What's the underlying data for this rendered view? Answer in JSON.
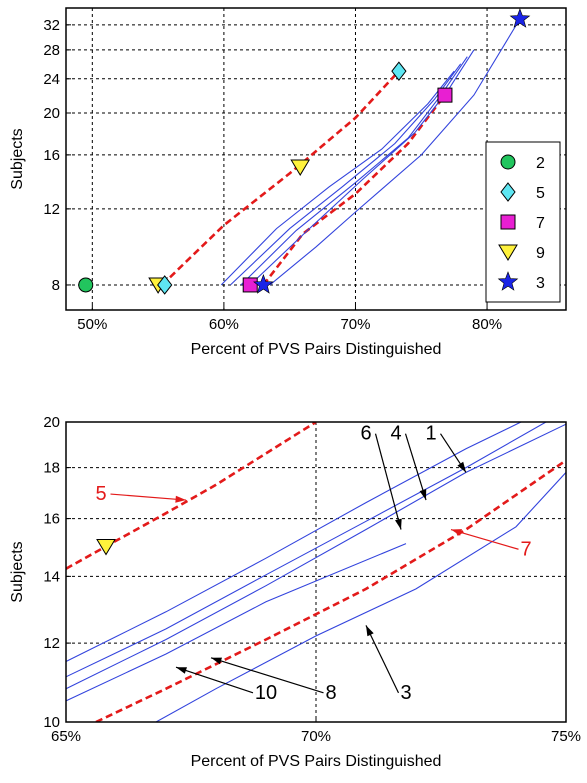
{
  "chart_data": [
    {
      "type": "line",
      "xlabel": "Percent of PVS Pairs Distinguished",
      "ylabel": "Subjects",
      "xlim": [
        48,
        86
      ],
      "ylim": [
        7,
        35
      ],
      "y_scale": "log",
      "grid": true,
      "x_ticks": [
        {
          "v": 50,
          "label": "50%"
        },
        {
          "v": 60,
          "label": "60%"
        },
        {
          "v": 70,
          "label": "70%"
        },
        {
          "v": 80,
          "label": "80%"
        }
      ],
      "y_ticks": [
        {
          "v": 8,
          "label": "8"
        },
        {
          "v": 12,
          "label": "12"
        },
        {
          "v": 16,
          "label": "16"
        },
        {
          "v": 20,
          "label": "20"
        },
        {
          "v": 24,
          "label": "24"
        },
        {
          "v": 28,
          "label": "28"
        },
        {
          "v": 32,
          "label": "32"
        }
      ],
      "legend": {
        "position": "lower-right",
        "entries": [
          {
            "label": "2",
            "marker": "circle",
            "color": "#22c55e"
          },
          {
            "label": "5",
            "marker": "diamond",
            "color": "#5ee6f2"
          },
          {
            "label": "7",
            "marker": "square",
            "color": "#e81fd2"
          },
          {
            "label": "9",
            "marker": "triangle-down",
            "color": "#fff23c"
          },
          {
            "label": "3",
            "marker": "star",
            "color": "#1a24e6"
          }
        ]
      },
      "series": [
        {
          "color": "#e31a1a",
          "style": "dashed",
          "x": [
            55.3,
            60,
            65,
            70,
            73.3
          ],
          "y": [
            8,
            11,
            14.5,
            19.5,
            25
          ]
        },
        {
          "color": "#e31a1a",
          "style": "dashed",
          "x": [
            63,
            66,
            70,
            74,
            76.8
          ],
          "y": [
            8,
            10.5,
            13,
            17,
            22
          ]
        },
        {
          "color": "#3344dd",
          "style": "solid",
          "x": [
            59.8,
            64,
            68,
            72,
            75.5,
            77.5
          ],
          "y": [
            8,
            10.8,
            13.5,
            16.5,
            21,
            25
          ]
        },
        {
          "color": "#3344dd",
          "style": "solid",
          "x": [
            60.5,
            65,
            69,
            73,
            76,
            78
          ],
          "y": [
            8,
            10.8,
            13.5,
            17,
            21.5,
            26
          ]
        },
        {
          "color": "#3344dd",
          "style": "solid",
          "x": [
            61.3,
            65.5,
            70,
            74,
            76.5,
            78.5
          ],
          "y": [
            8,
            10.7,
            13.8,
            17.5,
            22,
            27
          ]
        },
        {
          "color": "#3344dd",
          "style": "solid",
          "x": [
            62,
            66.5,
            70.5,
            74.5,
            77,
            79
          ],
          "y": [
            8,
            10.8,
            14,
            18,
            22.5,
            28
          ]
        },
        {
          "color": "#3344dd",
          "style": "solid",
          "x": [
            63.5,
            67,
            70,
            75,
            79,
            82.5
          ],
          "y": [
            8,
            9.8,
            11.8,
            16,
            22,
            33
          ]
        }
      ],
      "points": [
        {
          "label": "2",
          "marker": "circle",
          "color": "#22c55e",
          "x": 49.5,
          "y": 8
        },
        {
          "label": "9",
          "marker": "triangle-down",
          "color": "#fff23c",
          "x": 55,
          "y": 8
        },
        {
          "label": "5",
          "marker": "diamond",
          "color": "#5ee6f2",
          "x": 55.5,
          "y": 8
        },
        {
          "label": "9",
          "marker": "triangle-down",
          "color": "#fff23c",
          "x": 65.8,
          "y": 15
        },
        {
          "label": "5",
          "marker": "diamond",
          "color": "#5ee6f2",
          "x": 73.3,
          "y": 25
        },
        {
          "label": "7",
          "marker": "square",
          "color": "#e81fd2",
          "x": 62,
          "y": 8
        },
        {
          "label": "3",
          "marker": "star",
          "color": "#1a24e6",
          "x": 63,
          "y": 8
        },
        {
          "label": "7",
          "marker": "square",
          "color": "#e81fd2",
          "x": 76.8,
          "y": 22
        },
        {
          "label": "3",
          "marker": "star",
          "color": "#1a24e6",
          "x": 82.5,
          "y": 33
        }
      ]
    },
    {
      "type": "line",
      "xlabel": "Percent of PVS Pairs Distinguished",
      "ylabel": "Subjects",
      "xlim": [
        65,
        75
      ],
      "ylim": [
        10,
        20
      ],
      "y_scale": "log",
      "grid": true,
      "x_ticks": [
        {
          "v": 65,
          "label": "65%"
        },
        {
          "v": 70,
          "label": "70%"
        },
        {
          "v": 75,
          "label": "75%"
        }
      ],
      "y_ticks": [
        {
          "v": 10,
          "label": "10"
        },
        {
          "v": 12,
          "label": "12"
        },
        {
          "v": 14,
          "label": "14"
        },
        {
          "v": 16,
          "label": "16"
        },
        {
          "v": 18,
          "label": "18"
        },
        {
          "v": 20,
          "label": "20"
        }
      ],
      "series": [
        {
          "color": "#e31a1a",
          "style": "dashed",
          "x": [
            65,
            66,
            67,
            68,
            69,
            70
          ],
          "y": [
            14.25,
            15.2,
            16.2,
            17.3,
            18.6,
            20
          ]
        },
        {
          "color": "#e31a1a",
          "style": "dashed",
          "x": [
            65.6,
            67,
            69,
            71,
            73,
            75
          ],
          "y": [
            10,
            10.8,
            12.1,
            13.6,
            15.6,
            18.3
          ]
        },
        {
          "color": "#3344dd",
          "style": "solid",
          "x": [
            65,
            67,
            69,
            71,
            73,
            74.1
          ],
          "y": [
            11.5,
            12.9,
            14.6,
            16.6,
            18.8,
            20
          ]
        },
        {
          "color": "#3344dd",
          "style": "solid",
          "x": [
            65,
            67,
            69,
            71,
            73,
            74.6
          ],
          "y": [
            11.1,
            12.4,
            14.05,
            15.9,
            18,
            20
          ]
        },
        {
          "color": "#3344dd",
          "style": "solid",
          "x": [
            65,
            67,
            69,
            71,
            73,
            75
          ],
          "y": [
            10.8,
            12.1,
            13.7,
            15.6,
            17.8,
            19.9
          ]
        },
        {
          "color": "#3344dd",
          "style": "solid",
          "x": [
            65,
            67,
            69,
            71.8
          ],
          "y": [
            10.5,
            11.7,
            13.2,
            15.1
          ]
        },
        {
          "color": "#3344dd",
          "style": "solid",
          "x": [
            66.8,
            68,
            70,
            72,
            74,
            75
          ],
          "y": [
            10,
            10.8,
            12.2,
            13.6,
            15.7,
            17.8
          ]
        }
      ],
      "points": [
        {
          "label": "9",
          "marker": "triangle-down",
          "color": "#fff23c",
          "x": 65.8,
          "y": 15
        }
      ],
      "annotations": [
        {
          "text": "5",
          "color": "#e31a1a",
          "tx": 65.7,
          "ty": 16.7,
          "ax": 67.4,
          "ay": 16.7
        },
        {
          "text": "7",
          "color": "#e31a1a",
          "tx": 74.2,
          "ty": 14.7,
          "ax": 72.7,
          "ay": 15.6
        },
        {
          "text": "6",
          "color": "#000000",
          "tx": 71.0,
          "ty": 19.2,
          "ax": 71.7,
          "ay": 15.6
        },
        {
          "text": "4",
          "color": "#000000",
          "tx": 71.6,
          "ty": 19.2,
          "ax": 72.2,
          "ay": 16.7
        },
        {
          "text": "1",
          "color": "#000000",
          "tx": 72.3,
          "ty": 19.2,
          "ax": 73.0,
          "ay": 17.8
        },
        {
          "text": "10",
          "color": "#000000",
          "tx": 69.0,
          "ty": 10.55,
          "ax": 67.2,
          "ay": 11.35
        },
        {
          "text": "8",
          "color": "#000000",
          "tx": 70.3,
          "ty": 10.55,
          "ax": 67.9,
          "ay": 11.6
        },
        {
          "text": "3",
          "color": "#000000",
          "tx": 71.8,
          "ty": 10.55,
          "ax": 71.0,
          "ay": 12.5
        }
      ]
    }
  ]
}
